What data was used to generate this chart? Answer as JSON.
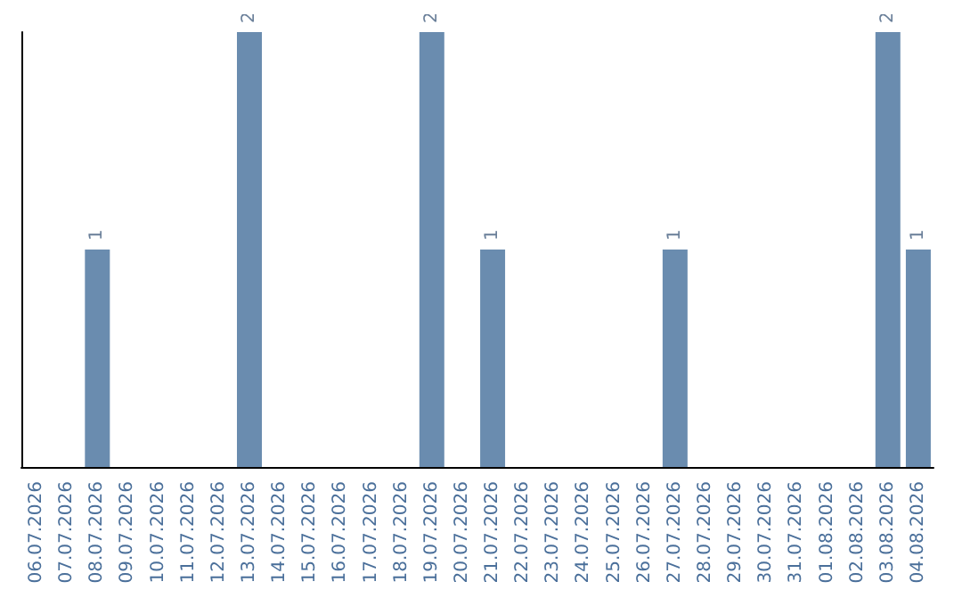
{
  "chart_data": {
    "type": "bar",
    "categories": [
      "06.07.2026",
      "07.07.2026",
      "08.07.2026",
      "09.07.2026",
      "10.07.2026",
      "11.07.2026",
      "12.07.2026",
      "13.07.2026",
      "14.07.2026",
      "15.07.2026",
      "16.07.2026",
      "17.07.2026",
      "18.07.2026",
      "19.07.2026",
      "20.07.2026",
      "21.07.2026",
      "22.07.2026",
      "23.07.2026",
      "24.07.2026",
      "25.07.2026",
      "26.07.2026",
      "27.07.2026",
      "28.07.2026",
      "29.07.2026",
      "30.07.2026",
      "31.07.2026",
      "01.08.2026",
      "02.08.2026",
      "03.08.2026",
      "04.08.2026"
    ],
    "values": [
      0,
      0,
      1,
      0,
      0,
      0,
      0,
      2,
      0,
      0,
      0,
      0,
      0,
      2,
      0,
      1,
      0,
      0,
      0,
      0,
      0,
      1,
      0,
      0,
      0,
      0,
      0,
      0,
      2,
      1
    ],
    "value_labels": [
      null,
      null,
      "1",
      null,
      null,
      null,
      null,
      "2",
      null,
      null,
      null,
      null,
      null,
      "2",
      null,
      "1",
      null,
      null,
      null,
      null,
      null,
      "1",
      null,
      null,
      null,
      null,
      null,
      null,
      "2",
      "1"
    ],
    "color": "#6a8caf",
    "ylim": [
      0,
      2
    ],
    "tick_labels": "x"
  }
}
